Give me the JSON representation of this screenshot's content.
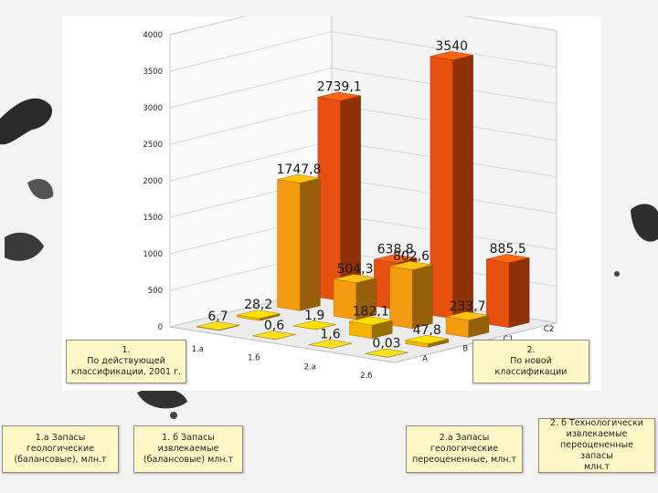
{
  "chart_data": {
    "type": "bar",
    "style": "3d-clustered",
    "yticks": [
      "0",
      "500",
      "1000",
      "1500",
      "2000",
      "2500",
      "3000",
      "3500",
      "4000"
    ],
    "ylim": [
      0,
      4000
    ],
    "categories": [
      "1.а",
      "1.б",
      "2.а",
      "2.б"
    ],
    "series": [
      {
        "depth_label": "A",
        "values": [
          6.7,
          0.6,
          1.6,
          0.03
        ],
        "labels": [
          "6,7",
          "0,6",
          "1,6",
          "0,03"
        ]
      },
      {
        "depth_label": "B",
        "values": [
          28.2,
          1.9,
          182.1,
          47.8
        ],
        "labels": [
          "28,2",
          "1,9",
          "182,1",
          "47,8"
        ]
      },
      {
        "depth_label": "C1",
        "values": [
          1747.8,
          504.3,
          802.6,
          233.7
        ],
        "labels": [
          "1747,8",
          "504,3",
          "802,6",
          "233,7"
        ]
      },
      {
        "depth_label": "C2",
        "values": [
          2739.1,
          638.8,
          3540,
          885.5
        ],
        "labels": [
          "2739,1",
          "638,8",
          "3540",
          "885,5"
        ]
      }
    ],
    "colors": {
      "A": "#d4b21a",
      "B": "#f5b400",
      "C1": "#f39a10",
      "C2": "#e8500f"
    },
    "grid": true
  },
  "boxes": {
    "current": {
      "num": "1.",
      "text": "По действующей\nклассификации, 2001 г."
    },
    "new": {
      "num": "2.",
      "text": "По новой\nклассификации"
    },
    "b1a": {
      "text": "1.а Запасы\nгеологические\n(балансовые), млн.т"
    },
    "b1b": {
      "text": "1. б Запасы\nизвлекаемые\n(балансовые) млн.т"
    },
    "b2a": {
      "text": "2.а Запасы\nгеологические\nпереоцененные, млн.т"
    },
    "b2b": {
      "text": "2. б Технологически\nизвлекаемые\nпереоцененные запасы\nмлн.т"
    }
  }
}
